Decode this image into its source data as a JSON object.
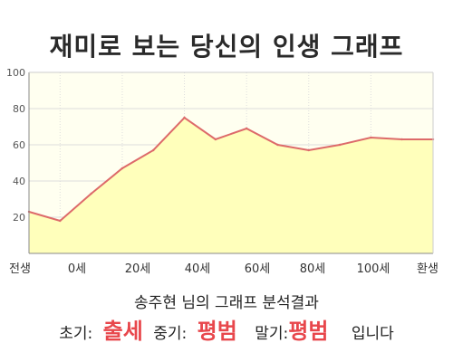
{
  "title": "재미로 보는 당신의 인생 그래프",
  "chart_data": {
    "type": "area",
    "title": "재미로 보는 당신의 인생 그래프",
    "xlabel": "",
    "ylabel": "",
    "ylim": [
      0,
      100
    ],
    "y_ticks": [
      20,
      40,
      60,
      80,
      100
    ],
    "x_ticks": [
      "전생",
      "0세",
      "20세",
      "40세",
      "60세",
      "80세",
      "100세",
      "환생"
    ],
    "x": [
      "전생",
      "0세",
      "10세",
      "20세",
      "30세",
      "40세",
      "50세",
      "60세",
      "70세",
      "80세",
      "90세",
      "100세",
      "110세",
      "환생"
    ],
    "values": [
      23,
      18,
      33,
      47,
      57,
      75,
      63,
      69,
      60,
      57,
      60,
      64,
      63,
      63
    ],
    "grid": true,
    "legend": "none",
    "colors": {
      "line": "#dd6a6a",
      "fill": "#ffffbb",
      "plot_bg": "#fffff0",
      "grid": "#dddddd"
    }
  },
  "summary": "송주현 님의 그래프 분석결과",
  "result": {
    "early_label": "초기:",
    "early_value": "출세",
    "middle_label": "중기:",
    "middle_value": "평범",
    "late_label": "말기:",
    "late_value": "평범",
    "ending": "입니다",
    "value_color": "#e8474c"
  }
}
